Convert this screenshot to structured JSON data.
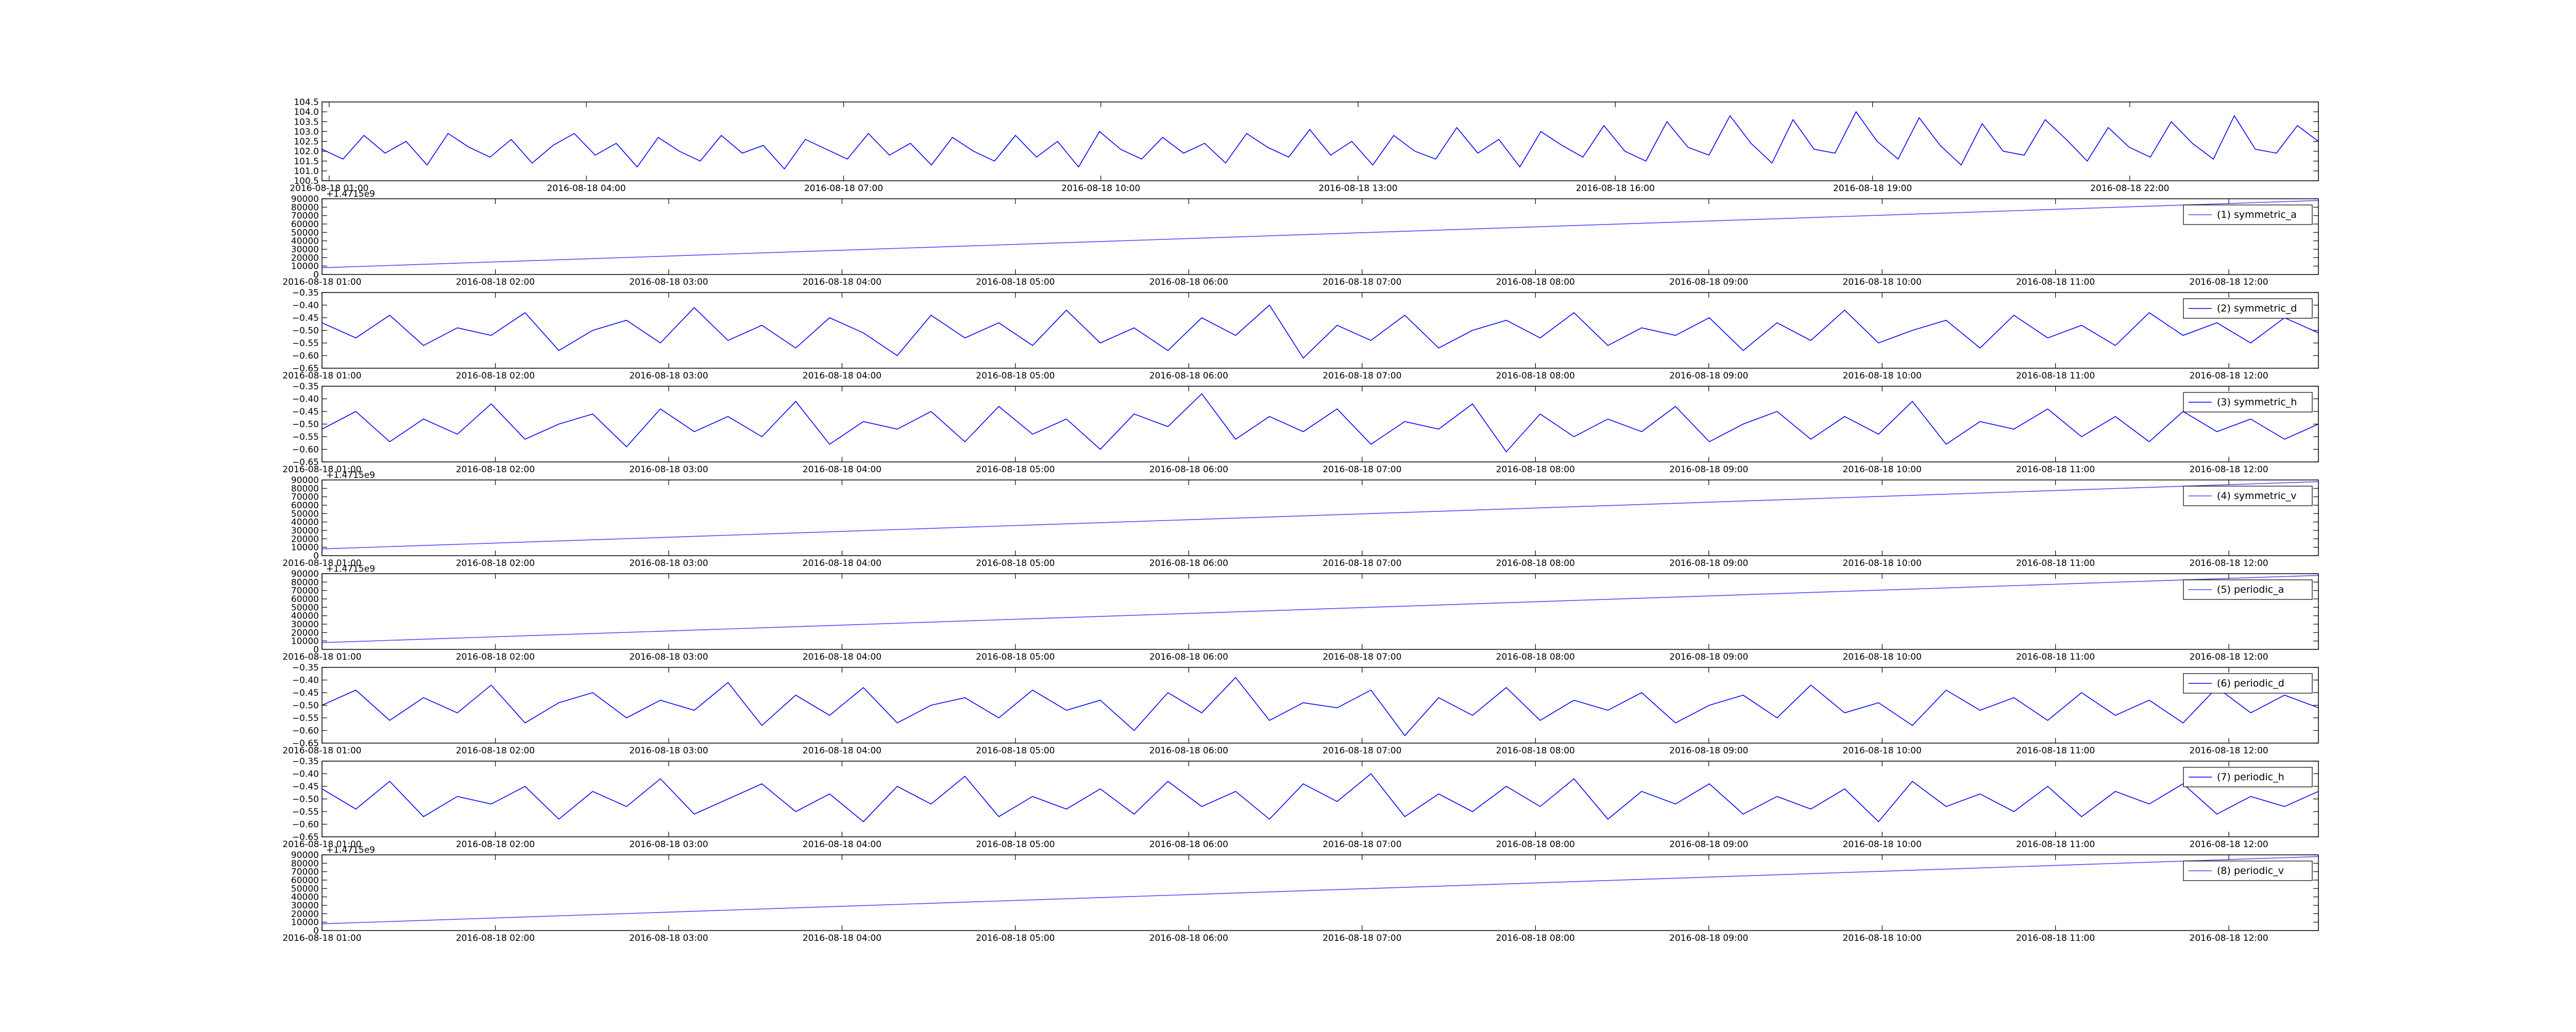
{
  "chart_data": [
    {
      "type": "line",
      "xlim": [
        "2016-08-18 00:55",
        "2016-08-19 00:12"
      ],
      "xticks": [
        "2016-08-18 01:00",
        "2016-08-18 04:00",
        "2016-08-18 07:00",
        "2016-08-18 10:00",
        "2016-08-18 13:00",
        "2016-08-18 16:00",
        "2016-08-18 19:00",
        "2016-08-18 22:00"
      ],
      "ylim": [
        100.5,
        104.5
      ],
      "yticks": [
        100.5,
        {
          "value": 101,
          "label": "101.0"
        },
        101.5,
        {
          "value": 102,
          "label": "102.0"
        },
        102.5,
        {
          "value": 103,
          "label": "103.0"
        },
        103.5,
        {
          "value": 104,
          "label": "104.0"
        },
        104.5
      ],
      "series": [
        {
          "color": "#0000ff",
          "values": [
            102.1,
            101.6,
            102.8,
            101.9,
            102.5,
            101.3,
            102.9,
            102.2,
            101.7,
            102.6,
            101.4,
            102.3,
            102.9,
            101.8,
            102.4,
            101.2,
            102.7,
            102.0,
            101.5,
            102.8,
            101.9,
            102.3,
            101.1,
            102.6,
            102.1,
            101.6,
            102.9,
            101.8,
            102.4,
            101.3,
            102.7,
            102.0,
            101.5,
            102.8,
            101.7,
            102.5,
            101.2,
            103.0,
            102.1,
            101.6,
            102.7,
            101.9,
            102.4,
            101.4,
            102.9,
            102.2,
            101.7,
            103.1,
            101.8,
            102.5,
            101.3,
            102.8,
            102.0,
            101.6,
            103.2,
            101.9,
            102.6,
            101.2,
            103.0,
            102.3,
            101.7,
            103.3,
            102.0,
            101.5,
            103.5,
            102.2,
            101.8,
            103.8,
            102.4,
            101.4,
            103.6,
            102.1,
            101.9,
            104.0,
            102.5,
            101.6,
            103.7,
            102.3,
            101.3,
            103.4,
            102.0,
            101.8,
            103.6,
            102.6,
            101.5,
            103.2,
            102.2,
            101.7,
            103.5,
            102.4,
            101.6,
            103.8,
            102.1,
            101.9,
            103.3,
            102.5
          ]
        }
      ]
    },
    {
      "type": "line",
      "offset_text": "+1.4715e9",
      "xlim": [
        "2016-08-18 01:00",
        "2016-08-18 12:31"
      ],
      "xticks": [
        "2016-08-18 01:00",
        "2016-08-18 02:00",
        "2016-08-18 03:00",
        "2016-08-18 04:00",
        "2016-08-18 05:00",
        "2016-08-18 06:00",
        "2016-08-18 07:00",
        "2016-08-18 08:00",
        "2016-08-18 09:00",
        "2016-08-18 10:00",
        "2016-08-18 11:00",
        "2016-08-18 12:00"
      ],
      "ylim": [
        0,
        90000
      ],
      "yticks": [
        0,
        10000,
        20000,
        30000,
        40000,
        50000,
        60000,
        70000,
        80000,
        90000
      ],
      "legend": "upper right",
      "series": [
        {
          "name": "(1) symmetric_a",
          "color": "#4d4dff",
          "values": [
            8000,
            88000
          ]
        }
      ]
    },
    {
      "type": "line",
      "xlim": [
        "2016-08-18 01:00",
        "2016-08-18 12:31"
      ],
      "xticks": [
        "2016-08-18 01:00",
        "2016-08-18 02:00",
        "2016-08-18 03:00",
        "2016-08-18 04:00",
        "2016-08-18 05:00",
        "2016-08-18 06:00",
        "2016-08-18 07:00",
        "2016-08-18 08:00",
        "2016-08-18 09:00",
        "2016-08-18 10:00",
        "2016-08-18 11:00",
        "2016-08-18 12:00"
      ],
      "ylim": [
        -0.65,
        -0.35
      ],
      "yticks": [
        {
          "value": -0.65,
          "label": "−0.65"
        },
        {
          "value": -0.6,
          "label": "−0.60"
        },
        {
          "value": -0.55,
          "label": "−0.55"
        },
        {
          "value": -0.5,
          "label": "−0.50"
        },
        {
          "value": -0.45,
          "label": "−0.45"
        },
        {
          "value": -0.4,
          "label": "−0.40"
        },
        {
          "value": -0.35,
          "label": "−0.35"
        }
      ],
      "legend": "upper right",
      "series": [
        {
          "name": "(2) symmetric_d",
          "color": "#0000ff",
          "values": [
            -0.47,
            -0.53,
            -0.44,
            -0.56,
            -0.49,
            -0.52,
            -0.43,
            -0.58,
            -0.5,
            -0.46,
            -0.55,
            -0.41,
            -0.54,
            -0.48,
            -0.57,
            -0.45,
            -0.51,
            -0.6,
            -0.44,
            -0.53,
            -0.47,
            -0.56,
            -0.42,
            -0.55,
            -0.49,
            -0.58,
            -0.45,
            -0.52,
            -0.4,
            -0.61,
            -0.48,
            -0.54,
            -0.44,
            -0.57,
            -0.5,
            -0.46,
            -0.53,
            -0.43,
            -0.56,
            -0.49,
            -0.52,
            -0.45,
            -0.58,
            -0.47,
            -0.54,
            -0.42,
            -0.55,
            -0.5,
            -0.46,
            -0.57,
            -0.44,
            -0.53,
            -0.48,
            -0.56,
            -0.43,
            -0.52,
            -0.47,
            -0.55,
            -0.45,
            -0.51
          ]
        }
      ]
    },
    {
      "type": "line",
      "xlim": [
        "2016-08-18 01:00",
        "2016-08-18 12:31"
      ],
      "xticks": [
        "2016-08-18 01:00",
        "2016-08-18 02:00",
        "2016-08-18 03:00",
        "2016-08-18 04:00",
        "2016-08-18 05:00",
        "2016-08-18 06:00",
        "2016-08-18 07:00",
        "2016-08-18 08:00",
        "2016-08-18 09:00",
        "2016-08-18 10:00",
        "2016-08-18 11:00",
        "2016-08-18 12:00"
      ],
      "ylim": [
        -0.65,
        -0.35
      ],
      "yticks": [
        {
          "value": -0.65,
          "label": "−0.65"
        },
        {
          "value": -0.6,
          "label": "−0.60"
        },
        {
          "value": -0.55,
          "label": "−0.55"
        },
        {
          "value": -0.5,
          "label": "−0.50"
        },
        {
          "value": -0.45,
          "label": "−0.45"
        },
        {
          "value": -0.4,
          "label": "−0.40"
        },
        {
          "value": -0.35,
          "label": "−0.35"
        }
      ],
      "legend": "upper right",
      "series": [
        {
          "name": "(3) symmetric_h",
          "color": "#0000ff",
          "values": [
            -0.52,
            -0.45,
            -0.57,
            -0.48,
            -0.54,
            -0.42,
            -0.56,
            -0.5,
            -0.46,
            -0.59,
            -0.44,
            -0.53,
            -0.47,
            -0.55,
            -0.41,
            -0.58,
            -0.49,
            -0.52,
            -0.45,
            -0.57,
            -0.43,
            -0.54,
            -0.48,
            -0.6,
            -0.46,
            -0.51,
            -0.38,
            -0.56,
            -0.47,
            -0.53,
            -0.44,
            -0.58,
            -0.49,
            -0.52,
            -0.42,
            -0.61,
            -0.46,
            -0.55,
            -0.48,
            -0.53,
            -0.43,
            -0.57,
            -0.5,
            -0.45,
            -0.56,
            -0.47,
            -0.54,
            -0.41,
            -0.58,
            -0.49,
            -0.52,
            -0.44,
            -0.55,
            -0.47,
            -0.57,
            -0.45,
            -0.53,
            -0.48,
            -0.56,
            -0.5
          ]
        }
      ]
    },
    {
      "type": "line",
      "offset_text": "+1.4715e9",
      "xlim": [
        "2016-08-18 01:00",
        "2016-08-18 12:31"
      ],
      "xticks": [
        "2016-08-18 01:00",
        "2016-08-18 02:00",
        "2016-08-18 03:00",
        "2016-08-18 04:00",
        "2016-08-18 05:00",
        "2016-08-18 06:00",
        "2016-08-18 07:00",
        "2016-08-18 08:00",
        "2016-08-18 09:00",
        "2016-08-18 10:00",
        "2016-08-18 11:00",
        "2016-08-18 12:00"
      ],
      "ylim": [
        0,
        90000
      ],
      "yticks": [
        0,
        10000,
        20000,
        30000,
        40000,
        50000,
        60000,
        70000,
        80000,
        90000
      ],
      "legend": "upper right",
      "series": [
        {
          "name": "(4) symmetric_v",
          "color": "#4d4dff",
          "values": [
            8000,
            88000
          ]
        }
      ]
    },
    {
      "type": "line",
      "offset_text": "+1.4715e9",
      "xlim": [
        "2016-08-18 01:00",
        "2016-08-18 12:31"
      ],
      "xticks": [
        "2016-08-18 01:00",
        "2016-08-18 02:00",
        "2016-08-18 03:00",
        "2016-08-18 04:00",
        "2016-08-18 05:00",
        "2016-08-18 06:00",
        "2016-08-18 07:00",
        "2016-08-18 08:00",
        "2016-08-18 09:00",
        "2016-08-18 10:00",
        "2016-08-18 11:00",
        "2016-08-18 12:00"
      ],
      "ylim": [
        0,
        90000
      ],
      "yticks": [
        0,
        10000,
        20000,
        30000,
        40000,
        50000,
        60000,
        70000,
        80000,
        90000
      ],
      "legend": "upper right",
      "series": [
        {
          "name": "(5) periodic_a",
          "color": "#4d4dff",
          "values": [
            8000,
            88000
          ]
        }
      ]
    },
    {
      "type": "line",
      "xlim": [
        "2016-08-18 01:00",
        "2016-08-18 12:31"
      ],
      "xticks": [
        "2016-08-18 01:00",
        "2016-08-18 02:00",
        "2016-08-18 03:00",
        "2016-08-18 04:00",
        "2016-08-18 05:00",
        "2016-08-18 06:00",
        "2016-08-18 07:00",
        "2016-08-18 08:00",
        "2016-08-18 09:00",
        "2016-08-18 10:00",
        "2016-08-18 11:00",
        "2016-08-18 12:00"
      ],
      "ylim": [
        -0.65,
        -0.35
      ],
      "yticks": [
        {
          "value": -0.65,
          "label": "−0.65"
        },
        {
          "value": -0.6,
          "label": "−0.60"
        },
        {
          "value": -0.55,
          "label": "−0.55"
        },
        {
          "value": -0.5,
          "label": "−0.50"
        },
        {
          "value": -0.45,
          "label": "−0.45"
        },
        {
          "value": -0.4,
          "label": "−0.40"
        },
        {
          "value": -0.35,
          "label": "−0.35"
        }
      ],
      "legend": "upper right",
      "series": [
        {
          "name": "(6) periodic_d",
          "color": "#0000ff",
          "values": [
            -0.5,
            -0.44,
            -0.56,
            -0.47,
            -0.53,
            -0.42,
            -0.57,
            -0.49,
            -0.45,
            -0.55,
            -0.48,
            -0.52,
            -0.41,
            -0.58,
            -0.46,
            -0.54,
            -0.43,
            -0.57,
            -0.5,
            -0.47,
            -0.55,
            -0.44,
            -0.52,
            -0.48,
            -0.6,
            -0.45,
            -0.53,
            -0.39,
            -0.56,
            -0.49,
            -0.51,
            -0.44,
            -0.62,
            -0.47,
            -0.54,
            -0.43,
            -0.56,
            -0.48,
            -0.52,
            -0.45,
            -0.57,
            -0.5,
            -0.46,
            -0.55,
            -0.42,
            -0.53,
            -0.49,
            -0.58,
            -0.44,
            -0.52,
            -0.47,
            -0.56,
            -0.45,
            -0.54,
            -0.48,
            -0.57,
            -0.43,
            -0.53,
            -0.46,
            -0.51
          ]
        }
      ]
    },
    {
      "type": "line",
      "xlim": [
        "2016-08-18 01:00",
        "2016-08-18 12:31"
      ],
      "xticks": [
        "2016-08-18 01:00",
        "2016-08-18 02:00",
        "2016-08-18 03:00",
        "2016-08-18 04:00",
        "2016-08-18 05:00",
        "2016-08-18 06:00",
        "2016-08-18 07:00",
        "2016-08-18 08:00",
        "2016-08-18 09:00",
        "2016-08-18 10:00",
        "2016-08-18 11:00",
        "2016-08-18 12:00"
      ],
      "ylim": [
        -0.65,
        -0.35
      ],
      "yticks": [
        {
          "value": -0.65,
          "label": "−0.65"
        },
        {
          "value": -0.6,
          "label": "−0.60"
        },
        {
          "value": -0.55,
          "label": "−0.55"
        },
        {
          "value": -0.5,
          "label": "−0.50"
        },
        {
          "value": -0.45,
          "label": "−0.45"
        },
        {
          "value": -0.4,
          "label": "−0.40"
        },
        {
          "value": -0.35,
          "label": "−0.35"
        }
      ],
      "legend": "upper right",
      "series": [
        {
          "name": "(7) periodic_h",
          "color": "#0000ff",
          "values": [
            -0.46,
            -0.54,
            -0.43,
            -0.57,
            -0.49,
            -0.52,
            -0.45,
            -0.58,
            -0.47,
            -0.53,
            -0.42,
            -0.56,
            -0.5,
            -0.44,
            -0.55,
            -0.48,
            -0.59,
            -0.45,
            -0.52,
            -0.41,
            -0.57,
            -0.49,
            -0.54,
            -0.46,
            -0.56,
            -0.43,
            -0.53,
            -0.47,
            -0.58,
            -0.44,
            -0.51,
            -0.4,
            -0.57,
            -0.48,
            -0.55,
            -0.45,
            -0.53,
            -0.42,
            -0.58,
            -0.47,
            -0.52,
            -0.44,
            -0.56,
            -0.49,
            -0.54,
            -0.46,
            -0.59,
            -0.43,
            -0.53,
            -0.48,
            -0.55,
            -0.45,
            -0.57,
            -0.47,
            -0.52,
            -0.44,
            -0.56,
            -0.49,
            -0.53,
            -0.47
          ]
        }
      ]
    },
    {
      "type": "line",
      "offset_text": "+1.4715e9",
      "xlim": [
        "2016-08-18 01:00",
        "2016-08-18 12:31"
      ],
      "xticks": [
        "2016-08-18 01:00",
        "2016-08-18 02:00",
        "2016-08-18 03:00",
        "2016-08-18 04:00",
        "2016-08-18 05:00",
        "2016-08-18 06:00",
        "2016-08-18 07:00",
        "2016-08-18 08:00",
        "2016-08-18 09:00",
        "2016-08-18 10:00",
        "2016-08-18 11:00",
        "2016-08-18 12:00"
      ],
      "ylim": [
        0,
        90000
      ],
      "yticks": [
        0,
        10000,
        20000,
        30000,
        40000,
        50000,
        60000,
        70000,
        80000,
        90000
      ],
      "legend": "upper right",
      "series": [
        {
          "name": "(8) periodic_v",
          "color": "#4d4dff",
          "values": [
            8000,
            88000
          ]
        }
      ]
    }
  ]
}
